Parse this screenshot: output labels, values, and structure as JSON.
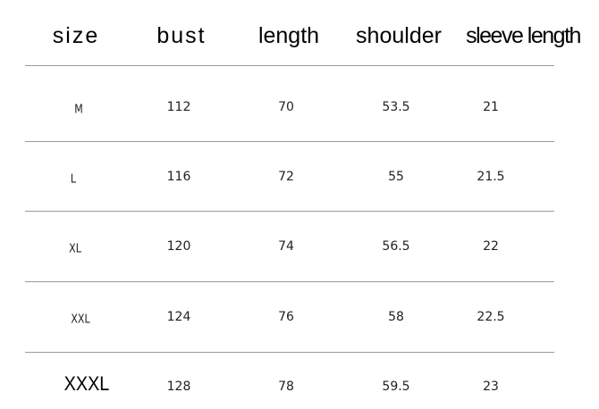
{
  "headers": [
    "size",
    "bust",
    "length",
    "shoulder",
    "sleeve length"
  ],
  "rows": [
    [
      "M",
      "112",
      "70",
      "53.5",
      "21"
    ],
    [
      "L",
      "116",
      "72",
      "55",
      "21.5"
    ],
    [
      "XL",
      "120",
      "74",
      "56.5",
      "22"
    ],
    [
      "XXL",
      "124",
      "76",
      "58",
      "22.5"
    ],
    [
      "XXXL",
      "128",
      "78",
      "59.5",
      "23"
    ]
  ]
}
